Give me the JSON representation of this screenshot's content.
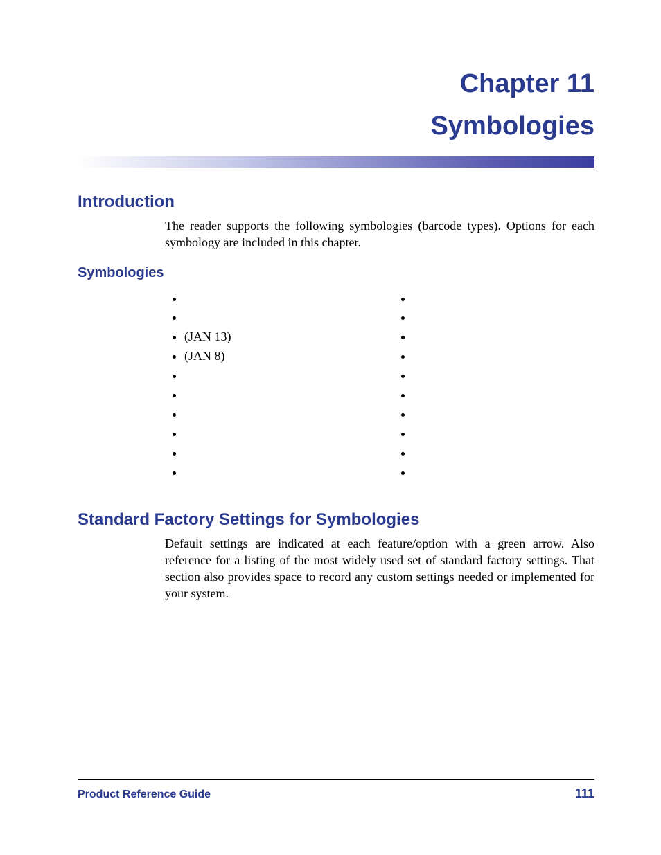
{
  "chapter": {
    "number_label": "Chapter 11",
    "title": "Symbologies"
  },
  "colors": {
    "heading": "#2a3a8f",
    "body": "#000000",
    "gradient_start": "#ffffff",
    "gradient_mid": "#c7caea",
    "gradient_end": "#3a3d9e",
    "background": "#ffffff"
  },
  "typography": {
    "heading_family": "Myriad Pro / sans-serif",
    "body_family": "Adobe Garamond / serif",
    "chapter_size_pt": 29,
    "h1_size_pt": 18,
    "h2_size_pt": 15,
    "body_size_pt": 13.5
  },
  "intro": {
    "heading": "Introduction",
    "paragraph": "The reader supports the following symbologies (barcode types). Options for each symbology are included in this chapter."
  },
  "symbologies_section": {
    "heading": "Symbologies",
    "left_items": [
      {
        "label": "",
        "suffix": ""
      },
      {
        "label": "",
        "suffix": ""
      },
      {
        "label": "",
        "suffix": "(JAN 13)"
      },
      {
        "label": "",
        "suffix": "(JAN 8)"
      },
      {
        "label": "",
        "suffix": ""
      },
      {
        "label": "",
        "suffix": ""
      },
      {
        "label": "",
        "suffix": ""
      },
      {
        "label": "",
        "suffix": ""
      },
      {
        "label": "",
        "suffix": ""
      },
      {
        "label": "",
        "suffix": ""
      }
    ],
    "right_items": [
      {
        "label": "",
        "suffix": ""
      },
      {
        "label": "",
        "suffix": ""
      },
      {
        "label": "",
        "suffix": ""
      },
      {
        "label": "",
        "suffix": ""
      },
      {
        "label": "",
        "suffix": ""
      },
      {
        "label": "",
        "suffix": ""
      },
      {
        "label": "",
        "suffix": ""
      },
      {
        "label": "",
        "suffix": ""
      },
      {
        "label": "",
        "suffix": ""
      },
      {
        "label": "",
        "suffix": ""
      }
    ]
  },
  "factory_section": {
    "heading": "Standard Factory Settings for Symbologies",
    "para_a": "Default settings are indicated at each feature/option with a green arrow. Also reference ",
    "para_b": " for a listing of the most widely used set of standard factory settings. That section also provides space to record any custom settings needed or implemented for your system."
  },
  "footer": {
    "left": "Product Reference Guide",
    "page_number": "111"
  }
}
